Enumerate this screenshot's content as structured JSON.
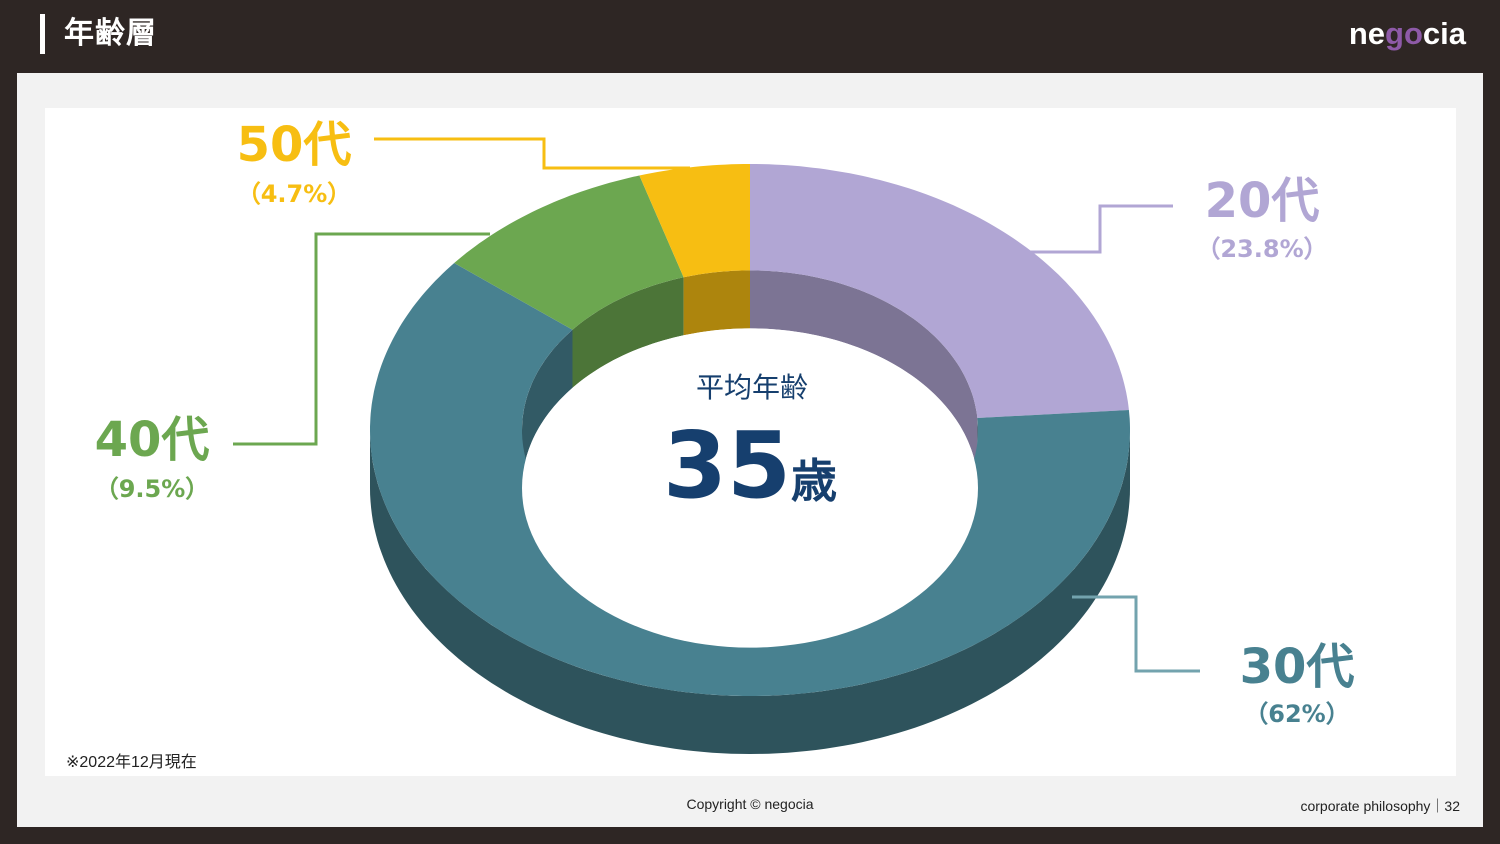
{
  "header": {
    "title": "年齢層",
    "logo_pre": "ne",
    "logo_accent": "go",
    "logo_post": "cia"
  },
  "colors": {
    "header_bg": "#2e2624",
    "twenties": "#b1a6d4",
    "thirties": "#488190",
    "forties": "#6ca750",
    "fifties": "#f7be12",
    "center_text": "#163f6e"
  },
  "chart_data": {
    "type": "pie",
    "variant": "3d-donut",
    "categories": [
      "20代",
      "30代",
      "40代",
      "50代"
    ],
    "values": [
      23.8,
      62,
      9.5,
      4.7
    ],
    "value_labels": [
      "（23.8%）",
      "（62%）",
      "（9.5%）",
      "（4.7%）"
    ],
    "center": {
      "label": "平均年齢",
      "value": "35",
      "unit": "歳"
    }
  },
  "note": "※2022年12月現在",
  "footer": {
    "copyright": "Copyright © negocia",
    "section": "corporate philosophy｜32"
  }
}
